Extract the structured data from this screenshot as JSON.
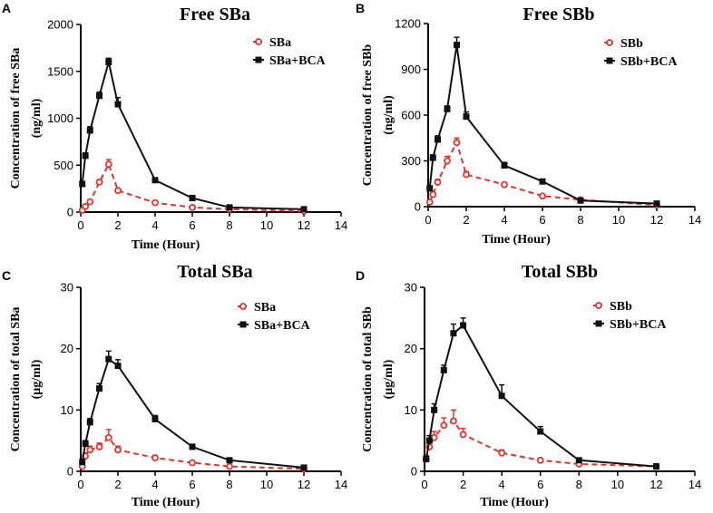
{
  "chart_data": [
    {
      "panel": "A",
      "type": "line",
      "title": "Free SBa",
      "xlabel": "Time (Hour)",
      "ylabel_lines": [
        "Concentration of free SBa",
        "(ng/ml)"
      ],
      "xlim": [
        0,
        14
      ],
      "ylim": [
        0,
        2000
      ],
      "xticks": [
        0,
        2,
        4,
        6,
        8,
        10,
        12,
        14
      ],
      "yticks": [
        0,
        500,
        1000,
        1500,
        2000
      ],
      "legend_position": "top-right",
      "series": [
        {
          "name": "SBa",
          "color": "#e8322c",
          "dashed": true,
          "marker": "open-circle",
          "x": [
            0.083,
            0.25,
            0.5,
            1,
            1.5,
            2,
            4,
            6,
            8,
            12
          ],
          "y": [
            20,
            60,
            110,
            320,
            510,
            230,
            100,
            50,
            30,
            10
          ],
          "err": [
            5,
            10,
            15,
            25,
            50,
            20,
            10,
            8,
            5,
            3
          ]
        },
        {
          "name": "SBa+BCA",
          "color": "#111111",
          "dashed": false,
          "marker": "filled-square",
          "x": [
            0.083,
            0.25,
            0.5,
            1,
            1.5,
            2,
            4,
            6,
            8,
            12
          ],
          "y": [
            300,
            600,
            870,
            1240,
            1600,
            1150,
            340,
            150,
            50,
            30
          ],
          "err": [
            20,
            30,
            40,
            40,
            40,
            70,
            15,
            10,
            5,
            3
          ]
        }
      ]
    },
    {
      "panel": "B",
      "type": "line",
      "title": "Free SBb",
      "xlabel": "Time (Hour)",
      "ylabel_lines": [
        "Concentration of free SBb",
        "(ng/ml)"
      ],
      "xlim": [
        0,
        14
      ],
      "ylim": [
        0,
        1200
      ],
      "xticks": [
        0,
        2,
        4,
        6,
        8,
        10,
        12,
        14
      ],
      "yticks": [
        0,
        300,
        600,
        900,
        1200
      ],
      "legend_position": "top-right",
      "series": [
        {
          "name": "SBb",
          "color": "#e8322c",
          "dashed": true,
          "marker": "open-circle",
          "x": [
            0.083,
            0.25,
            0.5,
            1,
            1.5,
            2,
            4,
            6,
            8,
            12
          ],
          "y": [
            30,
            80,
            160,
            300,
            420,
            210,
            145,
            70,
            45,
            10
          ],
          "err": [
            5,
            15,
            20,
            30,
            30,
            20,
            10,
            8,
            5,
            3
          ]
        },
        {
          "name": "SBb+BCA",
          "color": "#111111",
          "dashed": false,
          "marker": "filled-square",
          "x": [
            0.083,
            0.25,
            0.5,
            1,
            1.5,
            2,
            4,
            6,
            8,
            12
          ],
          "y": [
            120,
            320,
            440,
            640,
            1060,
            590,
            270,
            165,
            40,
            20
          ],
          "err": [
            10,
            20,
            25,
            20,
            50,
            30,
            20,
            10,
            5,
            3
          ]
        }
      ]
    },
    {
      "panel": "C",
      "type": "line",
      "title": "Total SBa",
      "xlabel": "Time (Hour)",
      "ylabel_lines": [
        "Concentration of total SBa",
        "(μg/ml)"
      ],
      "xlim": [
        0,
        14
      ],
      "ylim": [
        0,
        30
      ],
      "xticks": [
        0,
        2,
        4,
        6,
        8,
        10,
        12,
        14
      ],
      "yticks": [
        0,
        10,
        20,
        30
      ],
      "legend_position": "top-right",
      "series": [
        {
          "name": "SBa",
          "color": "#e8322c",
          "dashed": true,
          "marker": "open-circle",
          "x": [
            0.083,
            0.25,
            0.5,
            1,
            1.5,
            2,
            4,
            6,
            8,
            12
          ],
          "y": [
            0.8,
            2.5,
            3.5,
            4.0,
            5.5,
            3.5,
            2.2,
            1.4,
            0.8,
            0.4
          ],
          "err": [
            0.2,
            0.5,
            0.6,
            0.6,
            1.3,
            0.6,
            0.4,
            0.2,
            0.2,
            0.1
          ]
        },
        {
          "name": "SBa+BCA",
          "color": "#111111",
          "dashed": false,
          "marker": "filled-square",
          "x": [
            0.083,
            0.25,
            0.5,
            1,
            1.5,
            2,
            4,
            6,
            8,
            12
          ],
          "y": [
            1.5,
            4.5,
            8.0,
            13.5,
            18.3,
            17.2,
            8.5,
            4.0,
            1.8,
            0.6
          ],
          "err": [
            0.3,
            0.5,
            0.6,
            0.8,
            1.3,
            1.0,
            0.6,
            0.4,
            0.3,
            0.1
          ]
        }
      ]
    },
    {
      "panel": "D",
      "type": "line",
      "title": "Total SBb",
      "xlabel": "Time (Hour)",
      "ylabel_lines": [
        "Concentration of total SBb",
        "(μg/ml)"
      ],
      "xlim": [
        0,
        14
      ],
      "ylim": [
        0,
        30
      ],
      "xticks": [
        0,
        2,
        4,
        6,
        8,
        10,
        12,
        14
      ],
      "yticks": [
        0,
        10,
        20,
        30
      ],
      "legend_position": "top-right",
      "series": [
        {
          "name": "SBb",
          "color": "#e8322c",
          "dashed": true,
          "marker": "open-circle",
          "x": [
            0.083,
            0.25,
            0.5,
            1,
            1.5,
            2,
            4,
            6,
            8,
            12
          ],
          "y": [
            2.0,
            4.0,
            5.5,
            7.5,
            8.2,
            6.0,
            3.0,
            1.8,
            1.2,
            0.8
          ],
          "err": [
            0.5,
            0.8,
            1.0,
            1.2,
            1.8,
            1.0,
            0.5,
            0.3,
            0.2,
            0.1
          ]
        },
        {
          "name": "SBb+BCA",
          "color": "#111111",
          "dashed": false,
          "marker": "filled-square",
          "x": [
            0.083,
            0.25,
            0.5,
            1,
            1.5,
            2,
            4,
            6,
            8,
            12
          ],
          "y": [
            2.0,
            5.0,
            10.0,
            16.5,
            22.5,
            23.8,
            12.3,
            6.5,
            1.8,
            0.8
          ],
          "err": [
            0.5,
            0.8,
            1.0,
            0.8,
            1.5,
            1.2,
            1.8,
            0.8,
            0.3,
            0.1
          ]
        }
      ]
    }
  ]
}
